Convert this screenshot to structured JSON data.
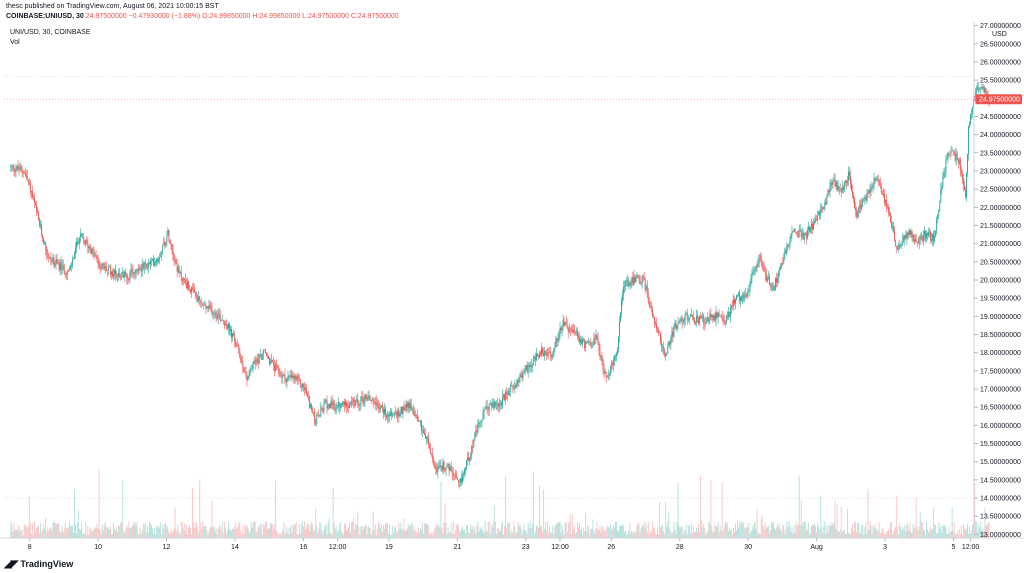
{
  "header": {
    "published": "thesc published on TradingView.com, August 06, 2021 10:00:15 BST",
    "symbol": "COINBASE:UNIUSD, 30",
    "change": "24.97500000  −0.47930000 (−1.88%)",
    "ohlc": "O:24.99850000  H:24.99850000  L:24.97500000  C:24.97500000"
  },
  "legend": {
    "series_label": "UNI/USD, 30, COINBASE",
    "volume_label": "Vol"
  },
  "footer": {
    "brand": "TradingView",
    "logo_icon": "tradingview-logo-icon"
  },
  "colors": {
    "up": "#26a69a",
    "down": "#ef5350",
    "vol_up": "#b2dfdb",
    "vol_down": "#f8c5c4",
    "price_tag": "#ef5350"
  },
  "chart_data": {
    "type": "candlestick",
    "timeframe": "30",
    "currency_label": "USD",
    "last_price_label": "24.97500000",
    "ylim": [
      12.9,
      27.1
    ],
    "y_ticks": [
      "13.00000000",
      "13.50000000",
      "14.00000000",
      "14.50000000",
      "15.00000000",
      "15.50000000",
      "16.00000000",
      "16.50000000",
      "17.00000000",
      "17.50000000",
      "18.00000000",
      "18.50000000",
      "19.00000000",
      "19.50000000",
      "20.00000000",
      "20.50000000",
      "21.00000000",
      "21.50000000",
      "22.00000000",
      "22.50000000",
      "23.00000000",
      "23.50000000",
      "24.00000000",
      "24.50000000",
      "25.00000000",
      "25.50000000",
      "26.00000000",
      "26.50000000",
      "27.00000000"
    ],
    "x_ticks": [
      "8",
      "10",
      "12",
      "14",
      "16",
      "12:00",
      "19",
      "21",
      "23",
      "12:00",
      "26",
      "28",
      "30",
      "Aug",
      "3",
      "5",
      "12:00"
    ],
    "x_tick_positions": [
      0.55,
      2.55,
      4.55,
      6.55,
      8.55,
      9.55,
      11.05,
      13.05,
      15.05,
      16.05,
      17.55,
      19.55,
      21.55,
      23.55,
      25.55,
      27.55,
      28.05
    ],
    "x_range": [
      -0.2,
      28.15
    ],
    "price_path": [
      [
        0,
        23.1
      ],
      [
        0.4,
        23.0
      ],
      [
        0.6,
        22.4
      ],
      [
        0.9,
        21.3
      ],
      [
        1.1,
        20.6
      ],
      [
        1.4,
        20.4
      ],
      [
        1.7,
        20.2
      ],
      [
        2.0,
        21.2
      ],
      [
        2.3,
        20.9
      ],
      [
        2.6,
        20.4
      ],
      [
        3.0,
        20.2
      ],
      [
        3.4,
        20.1
      ],
      [
        3.7,
        20.3
      ],
      [
        4.0,
        20.4
      ],
      [
        4.3,
        20.6
      ],
      [
        4.6,
        21.3
      ],
      [
        4.9,
        20.2
      ],
      [
        5.2,
        19.8
      ],
      [
        5.6,
        19.3
      ],
      [
        6.0,
        19.1
      ],
      [
        6.3,
        18.8
      ],
      [
        6.6,
        18.2
      ],
      [
        6.9,
        17.3
      ],
      [
        7.1,
        17.7
      ],
      [
        7.4,
        18.0
      ],
      [
        7.7,
        17.6
      ],
      [
        8.0,
        17.3
      ],
      [
        8.3,
        17.3
      ],
      [
        8.6,
        17.0
      ],
      [
        8.9,
        16.1
      ],
      [
        9.2,
        16.6
      ],
      [
        9.5,
        16.5
      ],
      [
        9.8,
        16.6
      ],
      [
        10.1,
        16.6
      ],
      [
        10.4,
        16.8
      ],
      [
        10.7,
        16.6
      ],
      [
        11.0,
        16.3
      ],
      [
        11.3,
        16.3
      ],
      [
        11.6,
        16.6
      ],
      [
        11.9,
        16.2
      ],
      [
        12.2,
        15.5
      ],
      [
        12.4,
        14.8
      ],
      [
        12.7,
        14.9
      ],
      [
        12.9,
        14.7
      ],
      [
        13.1,
        14.3
      ],
      [
        13.3,
        14.9
      ],
      [
        13.6,
        15.8
      ],
      [
        13.9,
        16.5
      ],
      [
        14.3,
        16.6
      ],
      [
        14.7,
        17.1
      ],
      [
        15.1,
        17.6
      ],
      [
        15.5,
        18.0
      ],
      [
        15.8,
        17.9
      ],
      [
        16.1,
        18.8
      ],
      [
        16.5,
        18.5
      ],
      [
        16.8,
        18.2
      ],
      [
        17.1,
        18.4
      ],
      [
        17.4,
        17.3
      ],
      [
        17.7,
        17.9
      ],
      [
        17.9,
        19.9
      ],
      [
        18.2,
        20.0
      ],
      [
        18.5,
        20.0
      ],
      [
        18.7,
        19.2
      ],
      [
        18.9,
        18.7
      ],
      [
        19.1,
        17.9
      ],
      [
        19.4,
        18.7
      ],
      [
        19.7,
        19.0
      ],
      [
        20.0,
        18.9
      ],
      [
        20.3,
        18.9
      ],
      [
        20.6,
        19.0
      ],
      [
        20.9,
        18.9
      ],
      [
        21.2,
        19.5
      ],
      [
        21.5,
        19.6
      ],
      [
        21.9,
        20.7
      ],
      [
        22.1,
        20.0
      ],
      [
        22.3,
        19.8
      ],
      [
        22.6,
        20.7
      ],
      [
        22.9,
        21.4
      ],
      [
        23.2,
        21.2
      ],
      [
        23.5,
        21.6
      ],
      [
        23.8,
        22.1
      ],
      [
        24.0,
        22.7
      ],
      [
        24.3,
        22.5
      ],
      [
        24.5,
        22.9
      ],
      [
        24.7,
        21.8
      ],
      [
        25.0,
        22.3
      ],
      [
        25.3,
        22.9
      ],
      [
        25.6,
        22.0
      ],
      [
        25.9,
        20.9
      ],
      [
        26.2,
        21.3
      ],
      [
        26.5,
        21.1
      ],
      [
        26.8,
        21.3
      ],
      [
        27.0,
        21.1
      ],
      [
        27.2,
        22.6
      ],
      [
        27.4,
        23.6
      ],
      [
        27.7,
        23.3
      ],
      [
        27.9,
        22.3
      ],
      [
        28.0,
        24.3
      ],
      [
        28.15,
        25.0
      ],
      [
        28.3,
        25.4
      ],
      [
        28.45,
        25.2
      ],
      [
        28.6,
        24.98
      ]
    ]
  }
}
